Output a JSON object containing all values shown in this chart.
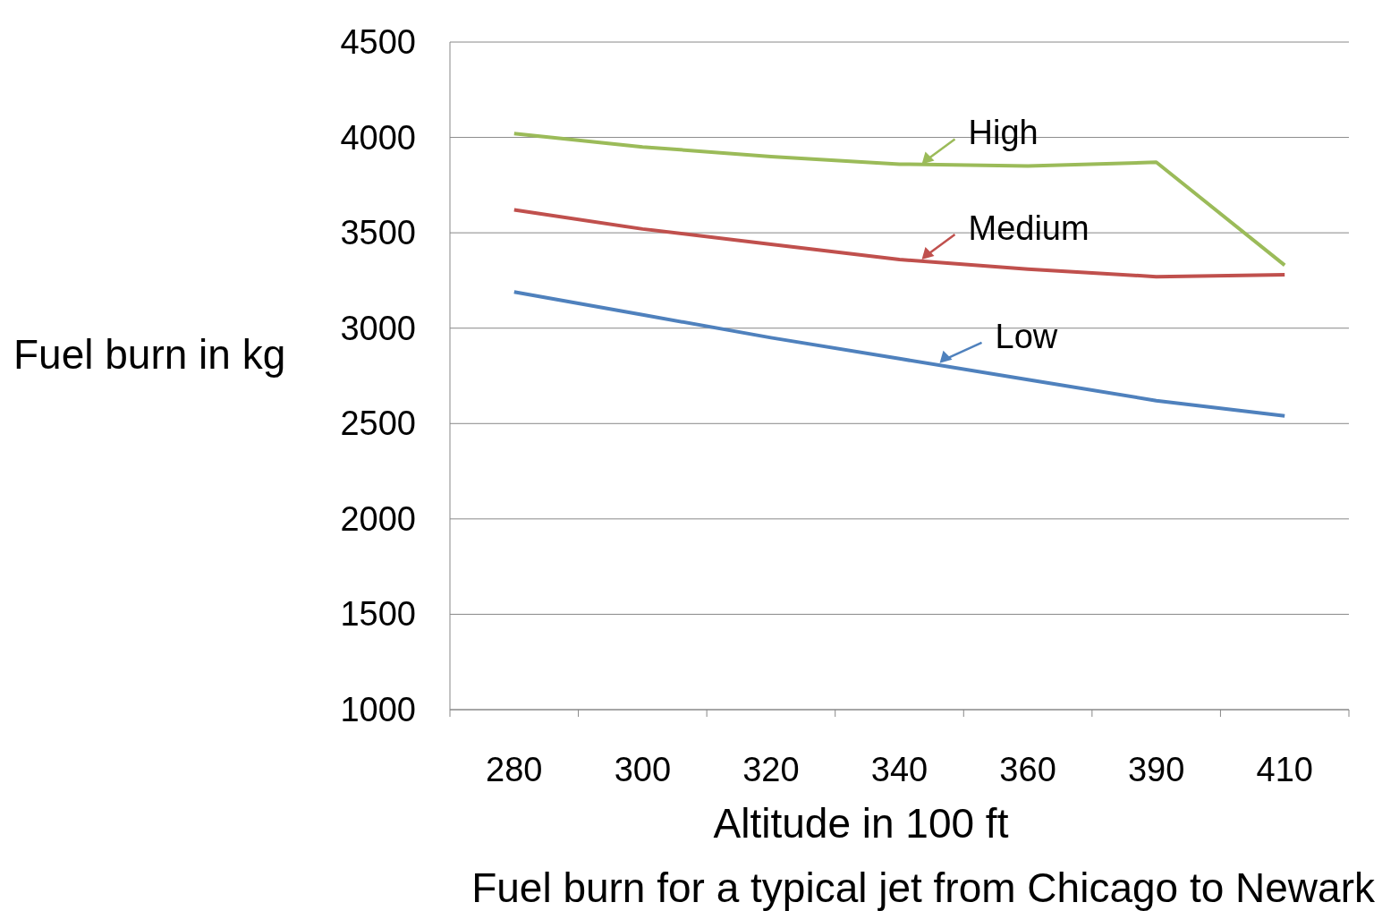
{
  "chart_data": {
    "type": "line",
    "title": "Fuel burn for a typical jet from Chicago to Newark",
    "xlabel": "Altitude in 100 ft",
    "ylabel": "Fuel burn in kg",
    "categories": [
      "280",
      "300",
      "320",
      "340",
      "360",
      "390",
      "410"
    ],
    "series": [
      {
        "name": "High",
        "color": "#9bbb59",
        "values": [
          4020,
          3950,
          3900,
          3860,
          3850,
          3870,
          3330
        ]
      },
      {
        "name": "Medium",
        "color": "#c0504d",
        "values": [
          3620,
          3520,
          3440,
          3360,
          3310,
          3270,
          3280
        ]
      },
      {
        "name": "Low",
        "color": "#4f81bd",
        "values": [
          3190,
          3070,
          2950,
          2840,
          2730,
          2620,
          2540
        ]
      }
    ],
    "ylim": [
      1000,
      4500
    ],
    "yticks": [
      1000,
      1500,
      2000,
      2500,
      3000,
      3500,
      4000,
      4500
    ],
    "grid": "y",
    "legend": "top",
    "marker": "none",
    "line_style": "solid"
  }
}
